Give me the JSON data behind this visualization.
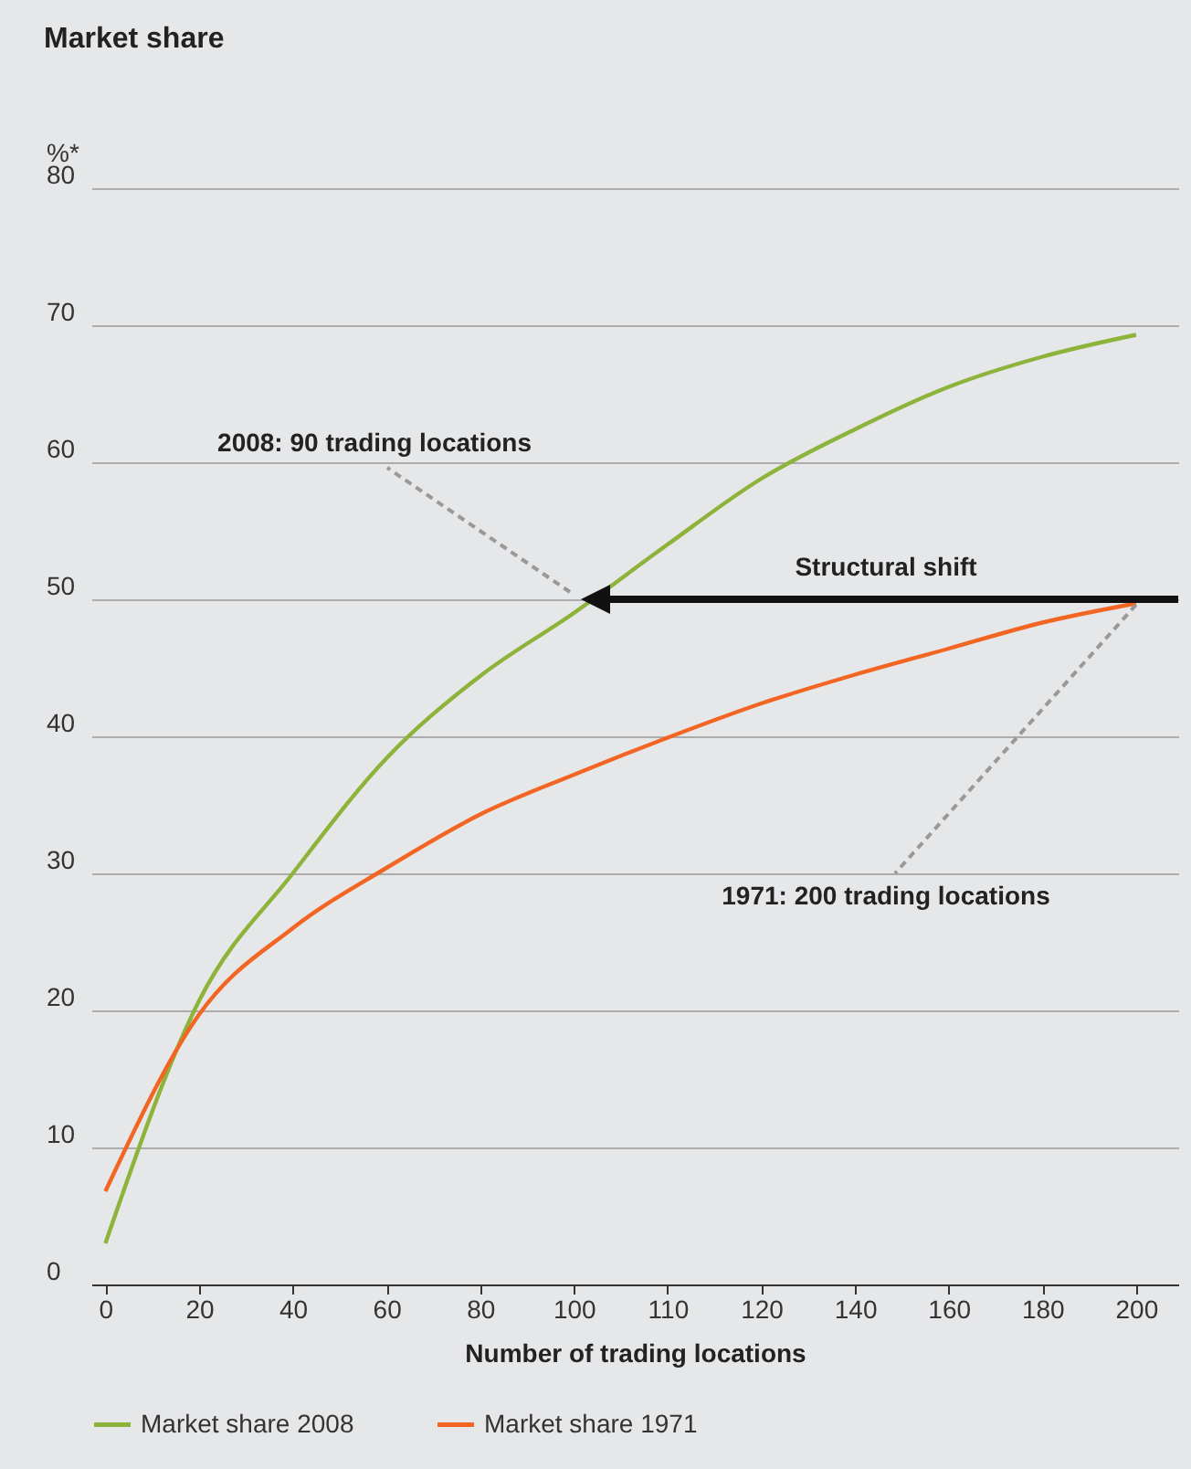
{
  "chart_data": {
    "type": "line",
    "title": "Market share",
    "ylabel": "%*",
    "xlabel": "Number of trading locations",
    "categories": [
      "0",
      "20",
      "40",
      "60",
      "80",
      "100",
      "110",
      "120",
      "140",
      "160",
      "180",
      "200"
    ],
    "series": [
      {
        "name": "Market share 2008",
        "color": "#8db33a",
        "values": [
          3,
          20.7,
          30,
          38.4,
          44.4,
          49,
          54,
          58.8,
          62.4,
          65.5,
          67.7,
          69.3
        ]
      },
      {
        "name": "Market share 1971",
        "color": "#f26522",
        "values": [
          6.8,
          19.7,
          26,
          30.4,
          34.3,
          37.2,
          39.9,
          42.4,
          44.5,
          46.4,
          48.3,
          49.7
        ]
      }
    ],
    "ylim": [
      0,
      80
    ],
    "yticks": [
      0,
      10,
      20,
      30,
      40,
      50,
      60,
      70,
      80
    ],
    "grid": "y",
    "legend": "bottom",
    "marker": "none",
    "line_style": "solid",
    "annotations": [
      "2008: 90 trading locations",
      {
        "text": "1971: 200 trading locations",
        "x": "200",
        "y": 50
      },
      "Structural shift"
    ]
  }
}
